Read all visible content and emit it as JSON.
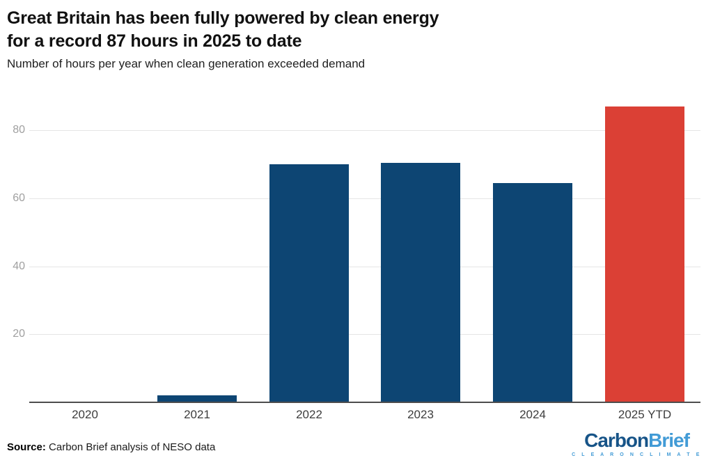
{
  "header": {
    "title_line1": "Great Britain has been fully powered by clean energy",
    "title_line2": "for a record 87 hours in 2025 to date",
    "subtitle": "Number of hours per year when clean generation exceeded demand"
  },
  "chart_data": {
    "type": "bar",
    "title": "Great Britain has been fully powered by clean energy for a record 87 hours in 2025 to date",
    "subtitle": "Number of hours per year when clean generation exceeded demand",
    "categories": [
      "2020",
      "2021",
      "2022",
      "2023",
      "2024",
      "2025 YTD"
    ],
    "values": [
      0,
      2,
      70,
      70.5,
      64.5,
      87
    ],
    "xlabel": "",
    "ylabel": "Number of hours per year",
    "yticks": [
      20,
      40,
      60,
      80
    ],
    "ylim": [
      0,
      92
    ],
    "grid": "horizontal",
    "legend": "none",
    "bar_colors": [
      "#0d4573",
      "#0d4573",
      "#0d4573",
      "#0d4573",
      "#0d4573",
      "#db4035"
    ],
    "highlight_index": 5,
    "highlight_color": "#db4035",
    "default_color": "#0d4573"
  },
  "footer": {
    "source_label": "Source:",
    "source_text": " Carbon Brief analysis of NESO data",
    "logo": {
      "part1": "Carbon",
      "part2": "Brief",
      "tagline": "C L E A R   O N   C L I M A T E",
      "color_dark": "#175488",
      "color_light": "#429bd6"
    }
  },
  "colors": {
    "background": "#ffffff",
    "title_text": "#111111",
    "gridline": "#e5e5e5",
    "axis_line": "#4d4d4d",
    "ytick_text": "#a0a0a0",
    "xtick_text": "#3d3d3d"
  }
}
